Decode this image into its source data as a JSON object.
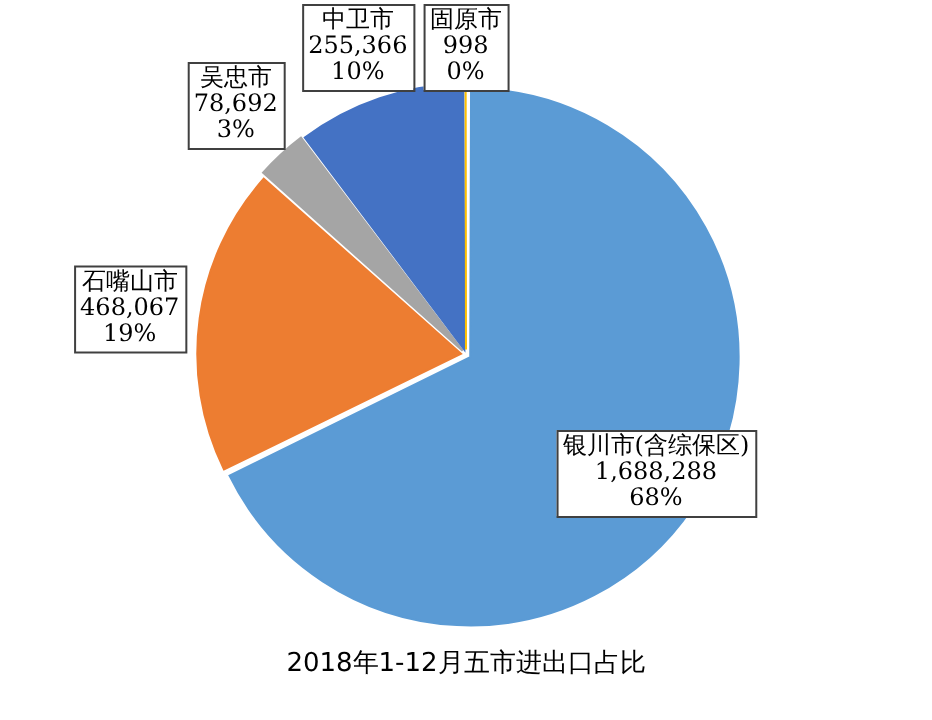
{
  "chart_data": {
    "type": "pie",
    "title": "2018年1-12月五市进出口占比",
    "categories": [
      "银川市(含综保区)",
      "石嘴山市",
      "吴忠市",
      "中卫市",
      "固原市"
    ],
    "values": [
      1688288,
      468067,
      78692,
      255366,
      998
    ],
    "value_labels": [
      "1,688,288\n68%",
      "468,067\n19%",
      "78,692\n3%",
      "255,366\n10%",
      "998\n0%"
    ],
    "colors": [
      "#5b9bd5",
      "#ed7d31",
      "#a5a5a5",
      "#4472c4",
      "#ffc000"
    ],
    "legend": false
  }
}
